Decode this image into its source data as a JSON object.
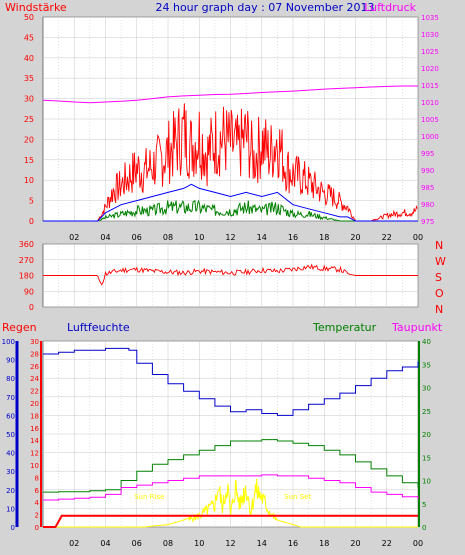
{
  "header": {
    "title": "24 hour graph day : 07 November 2013",
    "left_label": "Windstärke",
    "right_label": "Luftdruck"
  },
  "lower_header": {
    "regen": "Regen",
    "luftfeuchte": "Luftfeuchte",
    "temperatur": "Temperatur",
    "taupunkt": "Taupunkt"
  },
  "direction_labels": [
    "N",
    "W",
    "S",
    "O",
    "N"
  ],
  "sun_labels": {
    "rise": "Sun Rise",
    "set": "Sun Set"
  },
  "colors": {
    "background": "#d4d4d4",
    "plot": "#ffffff",
    "wind": "#ff0000",
    "wind_avg": "#0000ff",
    "wind_low": "#008000",
    "pressure": "#ff00ff",
    "humidity": "#0000c8",
    "temperature": "#008000",
    "dewpoint": "#ff00ff",
    "rain": "#ff0000",
    "solar": "#ffff00"
  },
  "chart_data": [
    {
      "type": "line",
      "name": "wind-pressure",
      "x_ticks": [
        "02",
        "04",
        "06",
        "08",
        "10",
        "12",
        "14",
        "16",
        "18",
        "20",
        "22",
        "00"
      ],
      "y_left_ticks": [
        "0",
        "5",
        "10",
        "15",
        "20",
        "25",
        "30",
        "35",
        "40",
        "45",
        "50"
      ],
      "y_left_range": [
        0,
        50
      ],
      "y_right_ticks": [
        "975",
        "980",
        "985",
        "990",
        "995",
        "1000",
        "1005",
        "1010",
        "1015",
        "1020",
        "1025",
        "1030",
        "1035"
      ],
      "y_right_range": [
        975,
        1035
      ],
      "series": [
        {
          "key": "gust",
          "hours": [
            0,
            3.5,
            4,
            4.5,
            5,
            5.5,
            6,
            6.5,
            7,
            7.5,
            8,
            8.5,
            9,
            9.5,
            10,
            10.5,
            11,
            11.5,
            12,
            12.5,
            13,
            13.5,
            14,
            14.5,
            15,
            15.5,
            16,
            16.5,
            17,
            17.5,
            18,
            18.5,
            19,
            19.5,
            20,
            21,
            22,
            23,
            23.5,
            24
          ],
          "values": [
            0,
            0,
            5,
            11,
            13,
            16,
            19,
            18,
            20,
            22,
            25,
            28,
            32,
            27,
            31,
            24,
            29,
            30,
            28,
            26,
            31,
            22,
            29,
            24,
            30,
            20,
            17,
            16,
            14,
            12,
            10,
            9,
            7,
            5,
            0,
            0,
            2,
            3,
            3,
            4
          ]
        },
        {
          "key": "avg",
          "hours": [
            0,
            3.5,
            4,
            5,
            6,
            7,
            8,
            9,
            9.5,
            10,
            11,
            12,
            13,
            14,
            15,
            16,
            17,
            18,
            19,
            19.5,
            20,
            24
          ],
          "values": [
            0,
            0,
            2,
            4,
            5,
            6,
            7,
            8,
            9,
            8,
            7,
            6,
            7,
            6,
            7,
            4,
            3,
            2,
            1,
            1,
            0,
            0
          ]
        },
        {
          "key": "low",
          "hours": [
            0,
            3.5,
            4,
            5,
            6,
            7,
            8,
            9,
            10,
            11,
            12,
            13,
            14,
            15,
            16,
            17,
            18,
            19,
            19.5,
            20,
            24
          ],
          "values": [
            0,
            0,
            1,
            2,
            3,
            3,
            4,
            4,
            4,
            3,
            3,
            4,
            3,
            4,
            2,
            2,
            1,
            0,
            0,
            0,
            0
          ]
        },
        {
          "key": "pressure",
          "hours": [
            0,
            1,
            2,
            3,
            4,
            5,
            6,
            7,
            8,
            9,
            10,
            11,
            12,
            13,
            14,
            15,
            16,
            17,
            18,
            19,
            20,
            21,
            22,
            23,
            24
          ],
          "values": [
            1010.5,
            1010.3,
            1010.0,
            1009.8,
            1010.0,
            1010.2,
            1010.5,
            1011.0,
            1011.5,
            1011.8,
            1012.0,
            1012.2,
            1012.3,
            1012.5,
            1012.8,
            1013.0,
            1013.2,
            1013.5,
            1013.8,
            1014.0,
            1014.2,
            1014.4,
            1014.6,
            1014.7,
            1014.7
          ]
        }
      ]
    },
    {
      "type": "line",
      "name": "wind-direction",
      "y_ticks": [
        "0",
        "90",
        "180",
        "270",
        "360"
      ],
      "y_range": [
        0,
        360
      ],
      "series": [
        {
          "key": "direction",
          "hours": [
            0,
            3.5,
            3.7,
            4,
            4.5,
            5,
            6,
            7,
            8,
            9,
            10,
            11,
            12,
            13,
            14,
            15,
            16,
            17,
            18,
            19,
            19.5,
            20,
            24
          ],
          "values": [
            180,
            180,
            120,
            190,
            200,
            210,
            215,
            205,
            200,
            195,
            205,
            200,
            195,
            200,
            210,
            205,
            215,
            230,
            220,
            215,
            190,
            180,
            180
          ]
        }
      ]
    },
    {
      "type": "line",
      "name": "humidity-temperature",
      "y_humidity_ticks": [
        "0",
        "10",
        "20",
        "30",
        "40",
        "50",
        "60",
        "70",
        "80",
        "90",
        "100"
      ],
      "y_humidity_range": [
        0,
        100
      ],
      "y_rain_ticks": [
        "0",
        "2",
        "4",
        "6",
        "8",
        "10",
        "12",
        "14",
        "16",
        "18",
        "20",
        "22",
        "24",
        "26",
        "28",
        "30"
      ],
      "y_rain_range": [
        0,
        30
      ],
      "y_temp_ticks": [
        "0",
        "5",
        "10",
        "15",
        "20",
        "25",
        "30",
        "35",
        "40"
      ],
      "y_temp_range": [
        0,
        40
      ],
      "series": [
        {
          "key": "humidity",
          "hours": [
            0,
            1,
            2,
            3,
            4,
            5,
            5.5,
            6,
            7,
            8,
            9,
            10,
            11,
            12,
            13,
            14,
            15,
            16,
            17,
            18,
            19,
            20,
            21,
            22,
            23,
            24
          ],
          "values": [
            93,
            94,
            95,
            95,
            96,
            96,
            95,
            88,
            82,
            77,
            73,
            69,
            65,
            62,
            63,
            61,
            60,
            63,
            66,
            69,
            72,
            76,
            80,
            84,
            86,
            89
          ]
        },
        {
          "key": "temperature",
          "hours": [
            0,
            1,
            2,
            3,
            4,
            5,
            6,
            7,
            8,
            9,
            10,
            11,
            12,
            13,
            14,
            15,
            16,
            17,
            18,
            19,
            20,
            21,
            22,
            23,
            24
          ],
          "values": [
            7.5,
            7.6,
            7.6,
            7.8,
            8.0,
            10.0,
            12.0,
            13.5,
            14.5,
            15.5,
            16.5,
            17.5,
            18.5,
            18.5,
            18.8,
            18.5,
            18.0,
            17.5,
            16.5,
            15.5,
            14.0,
            12.5,
            11.0,
            9.5,
            8.5
          ]
        },
        {
          "key": "dewpoint",
          "hours": [
            0,
            1,
            2,
            3,
            4,
            5,
            6,
            7,
            8,
            9,
            10,
            11,
            12,
            13,
            14,
            15,
            16,
            17,
            18,
            19,
            20,
            21,
            22,
            23,
            24
          ],
          "values": [
            5.8,
            6.0,
            6.2,
            6.4,
            7.0,
            8.5,
            9.0,
            9.5,
            10.0,
            10.5,
            11.0,
            11.0,
            11.0,
            11.0,
            11.2,
            11.0,
            11.0,
            10.5,
            10.0,
            9.5,
            8.5,
            7.5,
            7.0,
            6.5,
            6.0
          ]
        },
        {
          "key": "rain",
          "hours": [
            0,
            0.8,
            1.2,
            24
          ],
          "values": [
            0,
            0,
            1.8,
            1.8
          ]
        },
        {
          "key": "solar",
          "hours": [
            0,
            6.5,
            7,
            8,
            9,
            10,
            11,
            11.2,
            11.5,
            11.8,
            12,
            12.3,
            12.6,
            13,
            13.3,
            13.6,
            14,
            14.5,
            15,
            16,
            16.5,
            24
          ],
          "values": [
            0,
            0,
            0.2,
            0.5,
            1.5,
            3,
            6,
            11,
            5,
            12,
            3,
            11,
            6,
            11,
            4,
            10,
            8,
            4,
            1.5,
            0.5,
            0,
            0
          ]
        }
      ],
      "sunrise_hour": 6.8,
      "sunset_hour": 16.3
    }
  ]
}
